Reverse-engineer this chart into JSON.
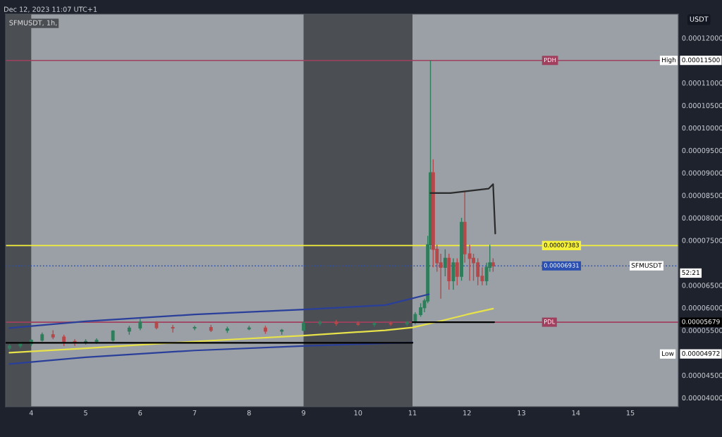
{
  "chart_data": {
    "type": "candlestick",
    "title": "SFMUSDT, 1h,",
    "subtitle": "Dec 12, 2023 11:07 UTC+1",
    "ylabel": "USDT",
    "x": [
      3.6,
      3.8,
      4.0,
      4.2,
      4.4,
      4.6,
      4.8,
      5.0,
      5.2,
      5.5,
      5.8,
      6.0,
      6.3,
      6.6,
      7.0,
      7.3,
      7.6,
      8.0,
      8.3,
      8.6,
      9.0,
      9.3,
      9.6,
      10.0,
      10.3,
      10.6,
      10.9,
      11.05,
      11.15,
      11.22,
      11.28,
      11.33,
      11.38,
      11.45,
      11.52,
      11.6,
      11.67,
      11.75,
      11.82,
      11.9,
      11.96,
      12.05,
      12.12,
      12.2,
      12.28,
      12.36,
      12.42,
      12.48
    ],
    "ohlc": [
      [
        5.1e-05,
        5.2e-05,
        5.05e-05,
        5.15e-05
      ],
      [
        5.15e-05,
        5.25e-05,
        5.1e-05,
        5.2e-05
      ],
      [
        5.2e-05,
        5.3e-05,
        5.15e-05,
        5.28e-05
      ],
      [
        5.28e-05,
        5.45e-05,
        5.25e-05,
        5.4e-05
      ],
      [
        5.4e-05,
        5.5e-05,
        5.3e-05,
        5.35e-05
      ],
      [
        5.35e-05,
        5.4e-05,
        5.15e-05,
        5.25e-05
      ],
      [
        5.25e-05,
        5.3e-05,
        5.15e-05,
        5.22e-05
      ],
      [
        5.22e-05,
        5.3e-05,
        5.18e-05,
        5.25e-05
      ],
      [
        5.25e-05,
        5.32e-05,
        5.2e-05,
        5.28e-05
      ],
      [
        5.28e-05,
        5.5e-05,
        5.25e-05,
        5.48e-05
      ],
      [
        5.48e-05,
        5.6e-05,
        5.4e-05,
        5.55e-05
      ],
      [
        5.55e-05,
        5.75e-05,
        5.5e-05,
        5.68e-05
      ],
      [
        5.68e-05,
        5.7e-05,
        5.52e-05,
        5.56e-05
      ],
      [
        5.56e-05,
        5.62e-05,
        5.45e-05,
        5.55e-05
      ],
      [
        5.55e-05,
        5.6e-05,
        5.5e-05,
        5.56e-05
      ],
      [
        5.56e-05,
        5.62e-05,
        5.46e-05,
        5.5e-05
      ],
      [
        5.5e-05,
        5.58e-05,
        5.44e-05,
        5.53e-05
      ],
      [
        5.53e-05,
        5.6e-05,
        5.5e-05,
        5.55e-05
      ],
      [
        5.55e-05,
        5.6e-05,
        5.42e-05,
        5.48e-05
      ],
      [
        5.48e-05,
        5.53e-05,
        5.4e-05,
        5.5e-05
      ],
      [
        5.5e-05,
        5.7e-05,
        5.48e-05,
        5.65e-05
      ],
      [
        5.65e-05,
        5.72e-05,
        5.6e-05,
        5.68e-05
      ],
      [
        5.68e-05,
        5.73e-05,
        5.6e-05,
        5.65e-05
      ],
      [
        5.65e-05,
        5.7e-05,
        5.6e-05,
        5.63e-05
      ],
      [
        5.63e-05,
        5.68e-05,
        5.58e-05,
        5.65e-05
      ],
      [
        5.65e-05,
        5.7e-05,
        5.6e-05,
        5.64e-05
      ],
      [
        5.64e-05,
        5.7e-05,
        5.6e-05,
        5.68e-05
      ],
      [
        5.68e-05,
        5.9e-05,
        5.63e-05,
        5.85e-05
      ],
      [
        5.85e-05,
        6.1e-05,
        5.8e-05,
        6e-05
      ],
      [
        6e-05,
        6.2e-05,
        5.9e-05,
        6.15e-05
      ],
      [
        6.15e-05,
        7.6e-05,
        6.1e-05,
        7.4e-05
      ],
      [
        7.4e-05,
        0.000115,
        7.3e-05,
        9e-05
      ],
      [
        9e-05,
        9.3e-05,
        6.9e-05,
        7.3e-05
      ],
      [
        7.3e-05,
        7.4e-05,
        6.8e-05,
        7e-05
      ],
      [
        7e-05,
        7.2e-05,
        6.2e-05,
        6.9e-05
      ],
      [
        6.9e-05,
        7.3e-05,
        6.7e-05,
        7.1e-05
      ],
      [
        7.1e-05,
        7.2e-05,
        6.4e-05,
        6.6e-05
      ],
      [
        6.6e-05,
        7.1e-05,
        6.4e-05,
        7e-05
      ],
      [
        7e-05,
        7.1e-05,
        6.5e-05,
        6.7e-05
      ],
      [
        6.7e-05,
        8e-05,
        6.6e-05,
        7.9e-05
      ],
      [
        7.9e-05,
        8.6e-05,
        7e-05,
        7.2e-05
      ],
      [
        7.2e-05,
        7.4e-05,
        6.6e-05,
        7.1e-05
      ],
      [
        7.1e-05,
        7.2e-05,
        6.6e-05,
        7e-05
      ],
      [
        7e-05,
        7.1e-05,
        6.5e-05,
        6.7e-05
      ],
      [
        6.7e-05,
        6.9e-05,
        6.5e-05,
        6.6e-05
      ],
      [
        6.6e-05,
        7e-05,
        6.5e-05,
        6.9e-05
      ],
      [
        6.9e-05,
        7.4e-05,
        6.8e-05,
        7e-05
      ],
      [
        7e-05,
        7.1e-05,
        6.8e-05,
        6.931e-05
      ]
    ],
    "colors": [
      "#2e7d5b",
      "#2e7d5b",
      "#2e7d5b",
      "#2e7d5b",
      "#b5484a",
      "#b5484a",
      "#b5484a",
      "#2e7d5b",
      "#2e7d5b",
      "#2e7d5b",
      "#2e7d5b",
      "#2e7d5b",
      "#b5484a",
      "#b5484a",
      "#2e7d5b",
      "#b5484a",
      "#2e7d5b",
      "#2e7d5b",
      "#b5484a",
      "#2e7d5b",
      "#2e7d5b",
      "#2e7d5b",
      "#b5484a",
      "#b5484a",
      "#2e7d5b",
      "#b5484a",
      "#2e7d5b",
      "#2e7d5b",
      "#2e7d5b",
      "#2e7d5b",
      "#2e7d5b",
      "#2e7d5b",
      "#b5484a",
      "#b5484a",
      "#b5484a",
      "#2e7d5b",
      "#b5484a",
      "#2e7d5b",
      "#b5484a",
      "#2e7d5b",
      "#b5484a",
      "#b5484a",
      "#b5484a",
      "#b5484a",
      "#b5484a",
      "#2e7d5b",
      "#2e7d5b",
      "#b5484a"
    ],
    "series": [
      {
        "type": "line",
        "color": "#e8e24a",
        "x": [
          3.6,
          5.0,
          7.0,
          9.0,
          10.5,
          11.0,
          11.5,
          12.0,
          12.48
        ],
        "values": [
          5e-05,
          5.1e-05,
          5.25e-05,
          5.38e-05,
          5.5e-05,
          5.56e-05,
          5.7e-05,
          5.85e-05,
          5.98e-05
        ]
      },
      {
        "type": "line",
        "color": "#2a3f9a",
        "x": [
          3.6,
          5.0,
          7.0,
          9.0,
          10.5,
          11.3
        ],
        "values": [
          5.55e-05,
          5.7e-05,
          5.85e-05,
          5.96e-05,
          6.06e-05,
          6.3e-05
        ]
      },
      {
        "type": "line",
        "color": "#2a3f9a",
        "x": [
          3.6,
          5.0,
          7.0,
          9.0,
          11.0
        ],
        "values": [
          4.75e-05,
          4.9e-05,
          5.05e-05,
          5.15e-05,
          5.23e-05
        ]
      },
      {
        "type": "line",
        "color": "#2b2b2b",
        "x": [
          11.33,
          11.7,
          12.4,
          12.48,
          12.52
        ],
        "values": [
          8.55e-05,
          8.55e-05,
          8.65e-05,
          8.75e-05,
          7.65e-05
        ]
      },
      {
        "type": "line",
        "color": "#000000",
        "x": [
          3.53,
          11.0
        ],
        "values": [
          5.22e-05,
          5.22e-05
        ]
      },
      {
        "type": "line",
        "color": "#000000",
        "x": [
          11.0,
          12.5
        ],
        "values": [
          5.679e-05,
          5.679e-05
        ]
      }
    ],
    "bands": [
      {
        "axis": "x",
        "from": 3.53,
        "to": 4.0,
        "color": "#4b4f54"
      },
      {
        "axis": "x",
        "from": 9.0,
        "to": 11.0,
        "color": "#4b4f54"
      }
    ],
    "ref_lines": [
      {
        "axis": "y",
        "value": 0.000115,
        "label": "PDH",
        "color": "#a0405e",
        "line_style": "solid"
      },
      {
        "axis": "y",
        "value": 5.679e-05,
        "label": "PDL",
        "color": "#a0405e",
        "line_style": "solid"
      },
      {
        "axis": "y",
        "value": 7.383e-05,
        "label": "0.00007383",
        "color": "#f5f03a",
        "line_style": "solid"
      },
      {
        "axis": "y",
        "value": 6.931e-05,
        "label": "0.00006931",
        "color": "#2a4fb0",
        "line_style": "dotted"
      }
    ],
    "annotations": [
      {
        "text": "High",
        "y": 0.000115
      },
      "0.00011500",
      {
        "text": "Low",
        "y": 4.972e-05
      },
      "0.00004972",
      {
        "text": "SFMUSDT",
        "y": 6.931e-05
      },
      "52:21",
      "0.00005679"
    ],
    "xlim": [
      3.53,
      15.88
    ],
    "xticks": [
      4,
      5,
      6,
      7,
      8,
      9,
      10,
      11,
      12,
      13,
      14,
      15
    ],
    "ylim": [
      3.8e-05,
      0.0001253
    ],
    "yticks": [
      {
        "value": 4e-05,
        "label": "0.00004000"
      },
      {
        "value": 4.5e-05,
        "label": "0.00004500"
      },
      {
        "value": 5.5e-05,
        "label": "0.00005500"
      },
      {
        "value": 6e-05,
        "label": "0.00006000"
      },
      {
        "value": 6.5e-05,
        "label": "0.00006500"
      },
      {
        "value": 7.5e-05,
        "label": "0.00007500"
      },
      {
        "value": 8e-05,
        "label": "0.00008000"
      },
      {
        "value": 8.5e-05,
        "label": "0.00008500"
      },
      {
        "value": 9e-05,
        "label": "0.00009000"
      },
      {
        "value": 9.5e-05,
        "label": "0.00009500"
      },
      {
        "value": 0.0001,
        "label": "0.00010000"
      },
      {
        "value": 0.000105,
        "label": "0.00010500"
      },
      {
        "value": 0.00011,
        "label": "0.00011000"
      },
      {
        "value": 0.00012,
        "label": "0.00012000"
      }
    ],
    "grid": false
  }
}
